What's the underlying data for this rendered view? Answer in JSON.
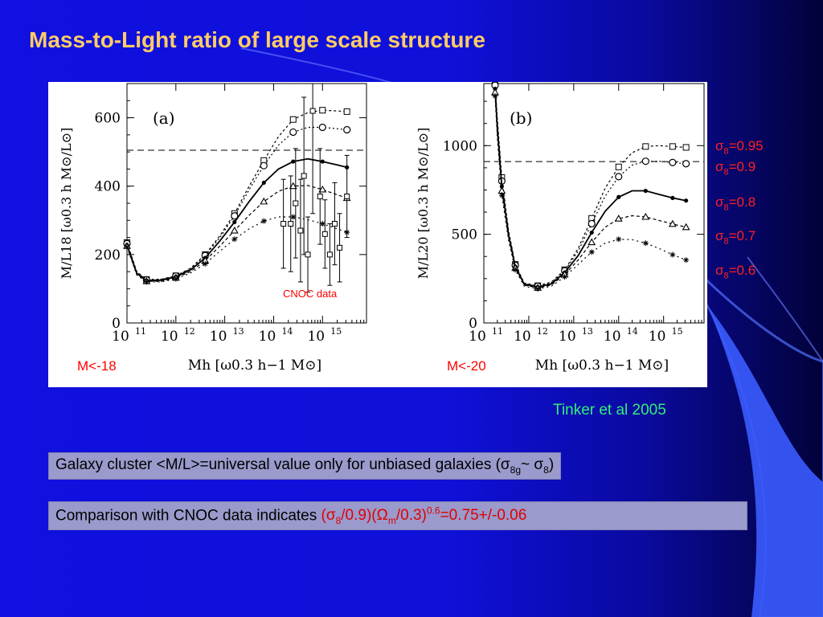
{
  "slide": {
    "title": "Mass-to-Light ratio of large scale structure",
    "citation": "Tinker et al 2005",
    "accent_colors": {
      "title": "#ffcc66",
      "legend": "#ff2020",
      "citation": "#33ee77",
      "highlight": "#e00000"
    }
  },
  "legend": {
    "items": [
      {
        "symbol": "σ",
        "sub": "8",
        "value": "=0.95"
      },
      {
        "symbol": "σ",
        "sub": "8",
        "value": "=0.9"
      },
      {
        "symbol": "σ",
        "sub": "8",
        "value": "=0.8"
      },
      {
        "symbol": "σ",
        "sub": "8",
        "value": "=0.7"
      },
      {
        "symbol": "σ",
        "sub": "8",
        "value": "=0.6"
      }
    ]
  },
  "notes": {
    "note1": {
      "text_a": "Galaxy cluster <M/L>=universal value only for unbiased galaxies (σ",
      "sub_a": "8g",
      "text_b": "~ σ",
      "sub_b": "8",
      "text_c": ")"
    },
    "note2": {
      "text_a": "Comparison with CNOC data indicates ",
      "red_a": "(σ",
      "red_sub_a": "8",
      "red_b": "/0.9)(Ω",
      "red_sub_b": "m",
      "red_c": "/0.3)",
      "red_sup": "0.6",
      "red_d": "=0.75+/-0.06"
    }
  },
  "chart_data": [
    {
      "type": "line",
      "panel_label": "(a)",
      "magnitude_cut": "M<-18",
      "annotation": "CNOC data",
      "ylabel": "M/L18 [ω0.3 h M⊙/L⊙]",
      "xlabel": "Mh [ω0.3 h−1 M⊙]",
      "x_log10_range": [
        11,
        15.9
      ],
      "ylim": [
        0,
        700
      ],
      "yticks": [
        0,
        200,
        400,
        600
      ],
      "xtick_labels": [
        "10",
        "10",
        "10",
        "10",
        "10",
        "10"
      ],
      "xtick_exponents": [
        "11",
        "12",
        "13",
        "14",
        "15"
      ],
      "reference_line_y": 505,
      "x_log10": [
        11.0,
        11.2,
        11.4,
        11.7,
        12.0,
        12.3,
        12.6,
        12.9,
        13.2,
        13.5,
        13.8,
        14.1,
        14.4,
        14.7,
        15.0,
        15.3,
        15.5
      ],
      "series": [
        {
          "sigma8": 0.95,
          "marker": "square",
          "values": [
            235,
            150,
            127,
            128,
            138,
            160,
            200,
            255,
            320,
            400,
            475,
            545,
            595,
            615,
            622,
            620,
            618
          ]
        },
        {
          "sigma8": 0.9,
          "marker": "circle",
          "values": [
            232,
            148,
            126,
            127,
            137,
            158,
            197,
            250,
            313,
            390,
            460,
            520,
            558,
            572,
            572,
            568,
            565
          ]
        },
        {
          "sigma8": 0.8,
          "marker": "dot",
          "values": [
            228,
            145,
            124,
            125,
            135,
            155,
            190,
            240,
            295,
            355,
            410,
            450,
            472,
            480,
            472,
            462,
            455
          ]
        },
        {
          "sigma8": 0.7,
          "marker": "triangle",
          "values": [
            225,
            142,
            122,
            122,
            132,
            150,
            182,
            225,
            270,
            315,
            355,
            385,
            400,
            402,
            390,
            375,
            365
          ]
        },
        {
          "sigma8": 0.6,
          "marker": "star",
          "values": [
            222,
            140,
            120,
            120,
            129,
            146,
            173,
            210,
            245,
            275,
            298,
            310,
            310,
            302,
            290,
            275,
            265
          ]
        }
      ],
      "cnoc_points": [
        {
          "x_log10": 14.2,
          "y": 290,
          "err": 130
        },
        {
          "x_log10": 14.35,
          "y": 290,
          "err": 140
        },
        {
          "x_log10": 14.45,
          "y": 350,
          "err": 160
        },
        {
          "x_log10": 14.55,
          "y": 270,
          "err": 150
        },
        {
          "x_log10": 14.62,
          "y": 430,
          "err": 230
        },
        {
          "x_log10": 14.7,
          "y": 200,
          "err": 110
        },
        {
          "x_log10": 14.8,
          "y": 620,
          "err": 300
        },
        {
          "x_log10": 14.95,
          "y": 370,
          "err": 140
        },
        {
          "x_log10": 15.05,
          "y": 260,
          "err": 100
        },
        {
          "x_log10": 15.15,
          "y": 200,
          "err": 90
        },
        {
          "x_log10": 15.25,
          "y": 290,
          "err": 120
        },
        {
          "x_log10": 15.35,
          "y": 220,
          "err": 100
        },
        {
          "x_log10": 15.5,
          "y": 370,
          "err": 120
        }
      ]
    },
    {
      "type": "line",
      "panel_label": "(b)",
      "magnitude_cut": "M<-20",
      "ylabel": "M/L20 [ω0.3 h M⊙/L⊙]",
      "xlabel": "Mh [ω0.3 h−1 M⊙]",
      "x_log10_range": [
        11,
        15.9
      ],
      "ylim": [
        0,
        1350
      ],
      "yticks": [
        0,
        500,
        1000
      ],
      "xtick_labels": [
        "10",
        "10",
        "10",
        "10",
        "10",
        "10"
      ],
      "xtick_exponents": [
        "11",
        "12",
        "13",
        "14",
        "15"
      ],
      "reference_line_y": 910,
      "x_log10": [
        11.25,
        11.3,
        11.4,
        11.55,
        11.7,
        11.9,
        12.2,
        12.5,
        12.8,
        13.1,
        13.4,
        13.7,
        14.0,
        14.3,
        14.6,
        14.9,
        15.2,
        15.5
      ],
      "series": [
        {
          "sigma8": 0.95,
          "marker": "square",
          "values": [
            1350,
            1150,
            820,
            520,
            330,
            225,
            210,
            230,
            300,
            420,
            590,
            760,
            880,
            960,
            995,
            1000,
            995,
            990
          ]
        },
        {
          "sigma8": 0.9,
          "marker": "circle",
          "values": [
            1340,
            1130,
            800,
            510,
            325,
            222,
            207,
            226,
            294,
            405,
            560,
            715,
            825,
            890,
            912,
            912,
            905,
            898
          ]
        },
        {
          "sigma8": 0.8,
          "marker": "dot",
          "values": [
            1320,
            1100,
            770,
            495,
            318,
            218,
            203,
            220,
            285,
            380,
            510,
            630,
            710,
            745,
            745,
            725,
            705,
            690
          ]
        },
        {
          "sigma8": 0.7,
          "marker": "triangle",
          "values": [
            1300,
            1070,
            745,
            480,
            310,
            213,
            198,
            214,
            273,
            355,
            455,
            540,
            588,
            605,
            598,
            578,
            558,
            540
          ]
        },
        {
          "sigma8": 0.6,
          "marker": "star",
          "values": [
            1280,
            1040,
            720,
            465,
            300,
            207,
            192,
            207,
            260,
            330,
            400,
            450,
            472,
            470,
            450,
            420,
            385,
            355
          ]
        }
      ]
    }
  ]
}
